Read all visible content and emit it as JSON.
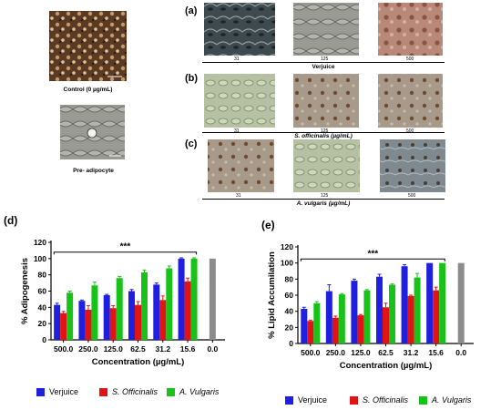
{
  "panels": {
    "control_caption": "Control (0 µg/mL)",
    "preadipocyte_caption": "Pre- adipocyte",
    "a": {
      "letter": "(a)",
      "caption": "Verjuice",
      "concs": [
        "31",
        "125",
        "500"
      ]
    },
    "b": {
      "letter": "(b)",
      "caption": "S. officinalis (µg/mL)",
      "concs": [
        "31",
        "125",
        "500"
      ]
    },
    "c": {
      "letter": "(c)",
      "caption": "A. vulgaris (µg/mL)",
      "concs": [
        "31",
        "125",
        "500"
      ]
    }
  },
  "colors": {
    "verjuice": "#1f1fe0",
    "s_officinalis": "#e01414",
    "a_vulgaris": "#19c219",
    "control": "#8c8c8c"
  },
  "legend": [
    {
      "name": "Verjuice",
      "italic": false
    },
    {
      "name": "S. Officinalis",
      "italic": true
    },
    {
      "name": "A. Vulgaris",
      "italic": true
    }
  ],
  "chart_data": [
    {
      "type": "bar",
      "panel_letter": "(d)",
      "ylabel": "% Adipogenesis",
      "xlabel": "Concentration (µg/mL)",
      "significance": "***",
      "categories": [
        "500.0",
        "250.0",
        "125.0",
        "62.5",
        "31.2",
        "15.6",
        "0.0"
      ],
      "ylim": [
        0,
        120
      ],
      "yticks": [
        0,
        20,
        40,
        60,
        80,
        100,
        120
      ],
      "series": [
        {
          "name": "Verjuice",
          "values": [
            43,
            48,
            55,
            60,
            68,
            100,
            null
          ],
          "errors": [
            2,
            1,
            1,
            2,
            2,
            1,
            null
          ]
        },
        {
          "name": "S. Officinalis",
          "values": [
            33,
            37,
            39,
            43,
            49,
            72,
            null
          ],
          "errors": [
            2,
            5,
            3,
            4,
            5,
            4,
            null
          ]
        },
        {
          "name": "A. Vulgaris",
          "values": [
            58,
            67,
            76,
            83,
            88,
            100,
            null
          ],
          "errors": [
            2,
            4,
            2,
            3,
            3,
            1,
            null
          ]
        },
        {
          "name": "Control",
          "values": [
            null,
            null,
            null,
            null,
            null,
            null,
            100
          ],
          "errors": [
            null,
            null,
            null,
            null,
            null,
            null,
            0
          ]
        }
      ]
    },
    {
      "type": "bar",
      "panel_letter": "(e)",
      "ylabel": "% Lipid Accumilation",
      "xlabel": "Concentration (µg/mL)",
      "significance": "***",
      "categories": [
        "500.0",
        "250.0",
        "125.0",
        "62.5",
        "31.2",
        "15.6",
        "0.0"
      ],
      "ylim": [
        0,
        120
      ],
      "yticks": [
        0,
        20,
        40,
        60,
        80,
        100,
        120
      ],
      "series": [
        {
          "name": "Verjuice",
          "values": [
            43,
            65,
            78,
            83,
            96,
            100,
            null
          ],
          "errors": [
            2,
            8,
            2,
            3,
            2,
            0,
            null
          ]
        },
        {
          "name": "S. Officinalis",
          "values": [
            28,
            32,
            35,
            45,
            59,
            66,
            null
          ],
          "errors": [
            1,
            2,
            1,
            5,
            1,
            4,
            null
          ]
        },
        {
          "name": "A. Vulgaris",
          "values": [
            50,
            61,
            66,
            73,
            82,
            100,
            null
          ],
          "errors": [
            2,
            1,
            1,
            1,
            5,
            0,
            null
          ]
        },
        {
          "name": "Control",
          "values": [
            null,
            null,
            null,
            null,
            null,
            null,
            100
          ],
          "errors": [
            null,
            null,
            null,
            null,
            null,
            null,
            0
          ]
        }
      ]
    }
  ]
}
